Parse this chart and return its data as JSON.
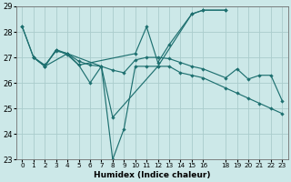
{
  "xlabel": "Humidex (Indice chaleur)",
  "bg_color": "#cce8e8",
  "grid_color": "#aacccc",
  "line_color": "#1e7070",
  "xlim": [
    -0.5,
    23.5
  ],
  "ylim": [
    23,
    29
  ],
  "yticks": [
    23,
    24,
    25,
    26,
    27,
    28,
    29
  ],
  "x_positions": [
    0,
    1,
    2,
    3,
    4,
    5,
    6,
    7,
    8,
    9,
    10,
    11,
    12,
    13,
    14,
    15,
    16,
    18,
    19,
    20,
    21,
    22,
    23
  ],
  "tick_labels": [
    "0",
    "1",
    "2",
    "3",
    "4",
    "5",
    "6",
    "7",
    "8",
    "9",
    "10",
    "11",
    "12",
    "13",
    "14",
    "15",
    "16",
    "18",
    "19",
    "20",
    "21",
    "22",
    "23"
  ],
  "series": [
    {
      "x": [
        0,
        1,
        2,
        3,
        4,
        5,
        6,
        7,
        8,
        9,
        10,
        11,
        12,
        13,
        14,
        15,
        16,
        18,
        19,
        20,
        21,
        22,
        23
      ],
      "y": [
        28.2,
        27.0,
        26.65,
        27.3,
        27.1,
        26.7,
        26.0,
        26.65,
        23.0,
        24.2,
        26.65,
        26.65,
        26.65,
        26.65,
        26.4,
        26.3,
        26.2,
        25.8,
        25.6,
        25.4,
        25.2,
        25.0,
        24.8
      ]
    },
    {
      "x": [
        1,
        2,
        3,
        4,
        5,
        6,
        7,
        8,
        9,
        10,
        11,
        12,
        13,
        14,
        15,
        16,
        18,
        19,
        20,
        21,
        22,
        23
      ],
      "y": [
        27.0,
        26.7,
        27.25,
        27.15,
        26.85,
        26.7,
        26.65,
        26.5,
        26.4,
        26.9,
        27.0,
        27.0,
        26.95,
        26.8,
        26.65,
        26.55,
        26.2,
        26.55,
        26.15,
        26.3,
        26.3,
        25.3
      ]
    },
    {
      "x": [
        0,
        1,
        2,
        3,
        4,
        5,
        10,
        11,
        12,
        13,
        15,
        16,
        18
      ],
      "y": [
        28.2,
        27.0,
        26.65,
        27.3,
        27.15,
        26.7,
        27.15,
        28.2,
        26.8,
        27.5,
        28.7,
        28.85,
        28.85
      ]
    },
    {
      "x": [
        1,
        2,
        4,
        7,
        8,
        12,
        15,
        16,
        18
      ],
      "y": [
        27.0,
        26.65,
        27.15,
        26.65,
        24.65,
        26.65,
        28.7,
        28.85,
        28.85
      ]
    }
  ]
}
